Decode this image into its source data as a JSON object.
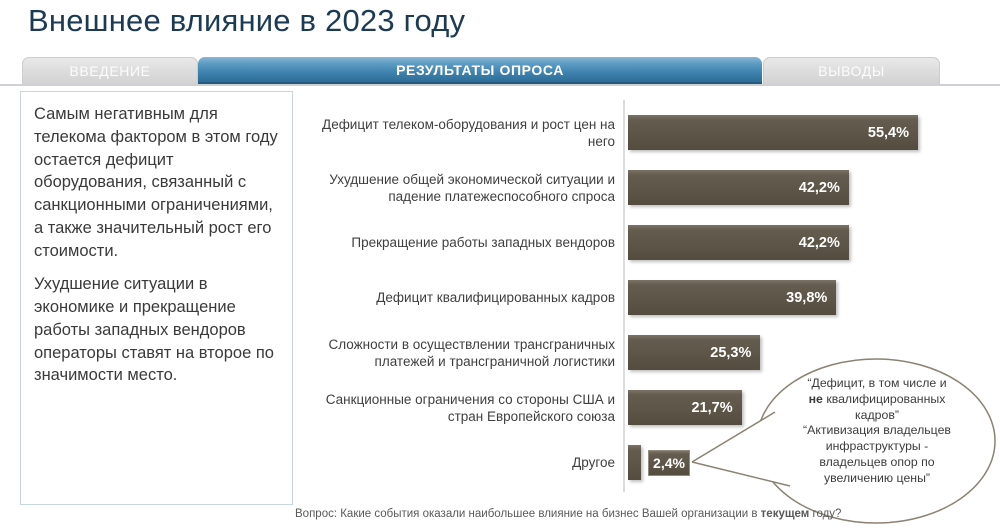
{
  "page": {
    "title": "Внешнее влияние в 2023 году"
  },
  "tabs": [
    {
      "label": "ВВЕДЕНИЕ",
      "active": false
    },
    {
      "label": "РЕЗУЛЬТАТЫ ОПРОСА",
      "active": true
    },
    {
      "label": "ВЫВОДЫ",
      "active": false
    }
  ],
  "side_panel": {
    "paragraph1": "Самым негативным для телекома фактором в этом году остается дефицит оборудования, связанный с санкционными ограничениями, а также значительный рост его стоимости.",
    "paragraph2": "Ухудшение ситуации в экономике и прекращение работы западных вендоров операторы ставят на второе по значимости место."
  },
  "chart_data": {
    "type": "bar",
    "orientation": "horizontal",
    "categories": [
      "Дефицит телеком-оборудования и рост цен на него",
      "Ухудшение общей экономической ситуации и падение платежеспособного спроса",
      "Прекращение работы западных вендоров",
      "Дефицит квалифицированных кадров",
      "Сложности в осуществлении трансграничных платежей и трансграничной логистики",
      "Санкционные ограничения со стороны США и стран Европейского союза",
      "Другое"
    ],
    "values": [
      55.4,
      42.2,
      42.2,
      39.8,
      25.3,
      21.7,
      2.4
    ],
    "value_labels": [
      "55,4%",
      "42,2%",
      "42,2%",
      "39,8%",
      "25,3%",
      "21,7%",
      "2,4%"
    ],
    "external_label_index": 6,
    "xlim": [
      0,
      60
    ],
    "grid": false,
    "legend": false,
    "bar_color": "#5d5547"
  },
  "callout": {
    "line1_pre": "“Дефицит, в том числе и\n",
    "line1_bold": "не",
    "line1_post": " квалифицированных\nкадров”\n“Активизация владельцев\nинфраструктуры -\nвладельцев опор по\nувеличению цены”"
  },
  "footnote": {
    "prefix": "Вопрос: Какие события оказали наибольшее влияние на бизнес Вашей организации в ",
    "bold": "текущем",
    "suffix": " году?"
  },
  "colors": {
    "title": "#1b3a54",
    "tab_active_top": "#8ab6d2",
    "tab_active_bottom": "#2d6d96",
    "tab_inactive": "#dedede",
    "bar": "#5d5547",
    "axis": "#dcdcdc",
    "callout_border": "#8b8272"
  }
}
